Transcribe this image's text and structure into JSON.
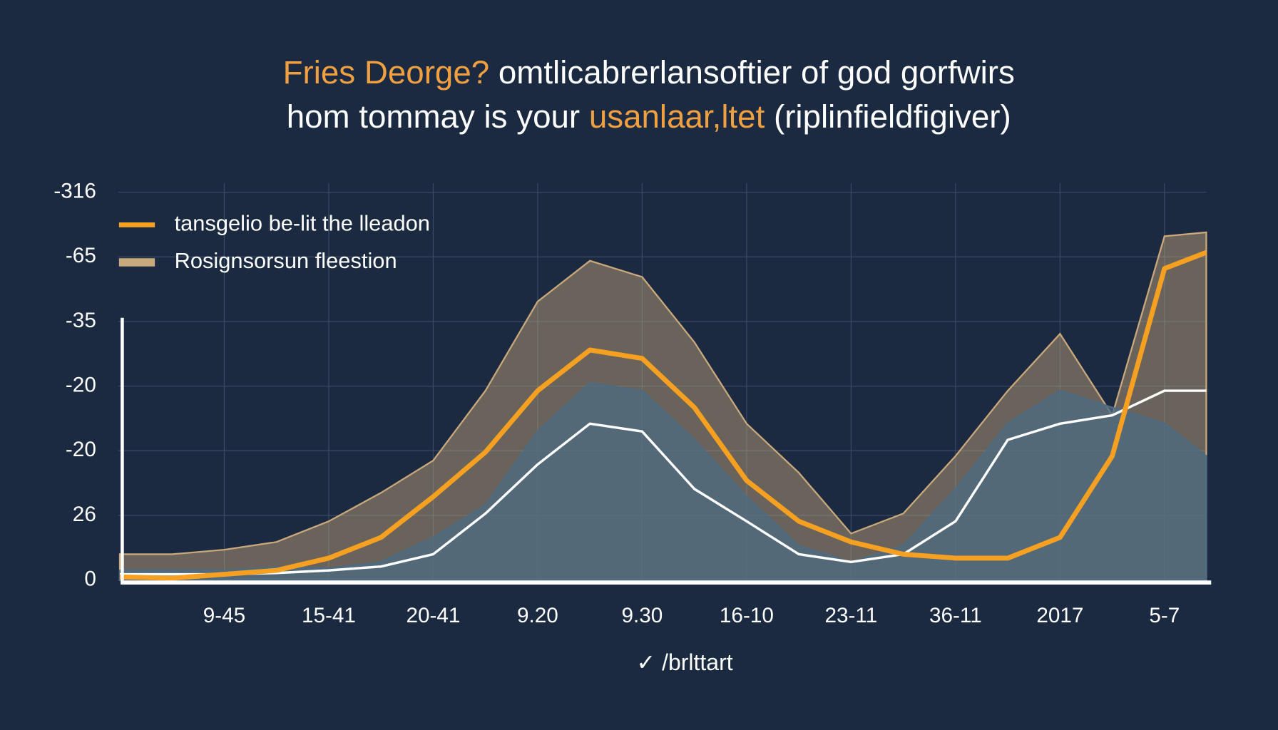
{
  "chart_data": {
    "type": "line",
    "title": [
      [
        "Fries Deorge?",
        " omtlicabrerlansoftier of god gorfwirs"
      ],
      [
        "hom tommay is your ",
        "usanlaar,ltet",
        " (riplinfieldfigiver)"
      ]
    ],
    "title_accent": [
      [
        true,
        false
      ],
      [
        false,
        true,
        false
      ]
    ],
    "title_color": "#ffffff",
    "title_accent_color": "#f0a040",
    "xlabel": "✓ /brlttart",
    "x": [
      0,
      0.5,
      1,
      1.5,
      2,
      2.5,
      3,
      3.5,
      4,
      4.5,
      5,
      5.5,
      6,
      6.5,
      7,
      7.5,
      8,
      8.5,
      9,
      9.5,
      10,
      10.4
    ],
    "xlim": [
      0,
      10.4
    ],
    "xticks": [
      {
        "value": 1,
        "label": "9-45"
      },
      {
        "value": 2,
        "label": "15-41"
      },
      {
        "value": 3,
        "label": "20-41"
      },
      {
        "value": 4,
        "label": "9.20"
      },
      {
        "value": 5,
        "label": "9.30"
      },
      {
        "value": 6,
        "label": "16-10"
      },
      {
        "value": 7,
        "label": "23-11"
      },
      {
        "value": 8,
        "label": "36-11"
      },
      {
        "value": 9,
        "label": "2017"
      },
      {
        "value": 10,
        "label": "5-7"
      }
    ],
    "ylim": [
      0,
      60
    ],
    "yticks": [
      0,
      {
        "value": 10,
        "label": "26"
      },
      {
        "value": 20,
        "label": "-20"
      },
      {
        "value": 30,
        "label": "-20"
      },
      {
        "value": 40,
        "label": "-35"
      },
      {
        "value": 50,
        "label": "-65"
      },
      {
        "value": 60,
        "label": "-316"
      }
    ],
    "grid": true,
    "legend": "upper left",
    "series": [
      {
        "name": "Rosignsorsun fleestion",
        "color": "#c9a87c",
        "style": "area",
        "values": [
          4.0,
          4.0,
          4.7,
          5.9,
          9.1,
          13.5,
          18.5,
          29.3,
          43.1,
          49.4,
          46.9,
          36.8,
          24.2,
          16.6,
          7.2,
          10.3,
          19.2,
          29.3,
          38.1,
          25.5,
          53.2,
          53.8
        ]
      },
      {
        "color": "#4d6b82",
        "style": "area",
        "values": [
          1.5,
          1.5,
          1.5,
          2.0,
          1.8,
          2.8,
          6.6,
          11.6,
          23.0,
          30.5,
          29.3,
          21.7,
          12.9,
          5.3,
          2.8,
          5.3,
          14.1,
          24.2,
          29.3,
          26.7,
          24.2,
          19.2
        ]
      },
      {
        "color": "#ffffff",
        "style": "line",
        "values": [
          0.9,
          0.9,
          0.9,
          1.1,
          1.5,
          2.1,
          4.0,
          10.3,
          17.9,
          24.2,
          23.0,
          14.1,
          9.1,
          4.0,
          2.8,
          4.0,
          9.1,
          21.7,
          24.2,
          25.5,
          29.3,
          29.3
        ]
      },
      {
        "name": "tansgelio be-lit the lleadon",
        "color": "#f5a020",
        "style": "line",
        "values": [
          0.5,
          0.3,
          0.9,
          1.5,
          3.4,
          6.6,
          12.9,
          19.8,
          29.3,
          35.6,
          34.3,
          26.7,
          15.4,
          9.1,
          5.9,
          4.0,
          3.4,
          3.4,
          6.6,
          19.2,
          48.2,
          50.7
        ]
      }
    ]
  }
}
